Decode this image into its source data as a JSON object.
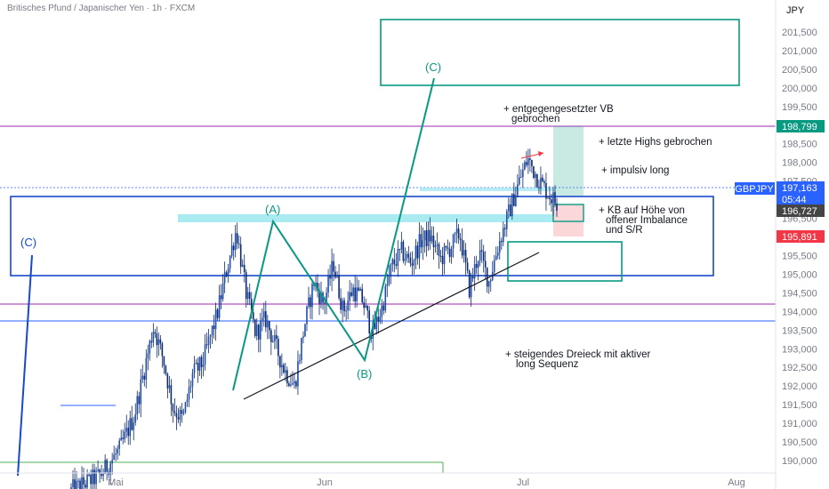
{
  "title": "Britisches Pfund / Japanischer Yen · 1h · FXCM",
  "currency": "JPY",
  "symbol_badge": "GBPJPY",
  "chart_data": {
    "type": "candlestick",
    "title": "Britisches Pfund / Japanischer Yen · 1h · FXCM",
    "ylim": [
      189.6,
      202.3
    ],
    "y_ticks": [
      "201,500",
      "201,000",
      "200,500",
      "200,000",
      "199,500",
      "199,000",
      "198,500",
      "198,000",
      "197,500",
      "197,000",
      "196,500",
      "196,000",
      "195,500",
      "195,000",
      "194,500",
      "194,000",
      "193,500",
      "193,000",
      "192,500",
      "192,000",
      "191,500",
      "191,000",
      "190,500",
      "190,000"
    ],
    "x_ticks": [
      "Mai",
      "Jun",
      "Jul",
      "Aug"
    ],
    "price_badges": [
      {
        "label": "198,799",
        "value": 198.799,
        "color": "#089981"
      },
      {
        "label": "197,163",
        "value": 197.163,
        "color": "#2962ff"
      },
      {
        "label": "05:44",
        "value": 196.95,
        "color": "#2962ff"
      },
      {
        "label": "196,727",
        "value": 196.727,
        "color": "#454545"
      },
      {
        "label": "195,891",
        "value": 195.891,
        "color": "#f23645"
      }
    ],
    "path": [
      [
        0.0,
        189.2
      ],
      [
        0.06,
        189.6
      ],
      [
        0.1,
        190.3
      ],
      [
        0.13,
        191.2
      ],
      [
        0.15,
        192.4
      ],
      [
        0.17,
        193.6
      ],
      [
        0.19,
        192.7
      ],
      [
        0.21,
        191.4
      ],
      [
        0.23,
        191.1
      ],
      [
        0.25,
        192.3
      ],
      [
        0.27,
        192.6
      ],
      [
        0.3,
        193.9
      ],
      [
        0.32,
        195.1
      ],
      [
        0.34,
        196.2
      ],
      [
        0.36,
        194.5
      ],
      [
        0.38,
        193.4
      ],
      [
        0.4,
        193.8
      ],
      [
        0.42,
        193.1
      ],
      [
        0.44,
        192.4
      ],
      [
        0.46,
        192.0
      ],
      [
        0.48,
        193.6
      ],
      [
        0.5,
        194.8
      ],
      [
        0.52,
        194.2
      ],
      [
        0.54,
        195.3
      ],
      [
        0.56,
        194.0
      ],
      [
        0.58,
        194.6
      ],
      [
        0.6,
        194.3
      ],
      [
        0.62,
        193.4
      ],
      [
        0.64,
        194.1
      ],
      [
        0.66,
        195.2
      ],
      [
        0.68,
        195.6
      ],
      [
        0.7,
        195.3
      ],
      [
        0.72,
        195.9
      ],
      [
        0.74,
        196.0
      ],
      [
        0.76,
        195.4
      ],
      [
        0.78,
        195.7
      ],
      [
        0.8,
        196.1
      ],
      [
        0.82,
        194.6
      ],
      [
        0.84,
        195.6
      ],
      [
        0.86,
        194.8
      ],
      [
        0.88,
        195.8
      ],
      [
        0.9,
        196.6
      ],
      [
        0.92,
        197.4
      ],
      [
        0.94,
        198.1
      ],
      [
        0.96,
        197.6
      ],
      [
        0.98,
        197.2
      ],
      [
        1.0,
        196.9
      ]
    ]
  },
  "annotations": {
    "vb": "+ entgegengesetzter VB",
    "vb2": "gebrochen",
    "highs": "+ letzte Highs gebrochen",
    "impulse": "+ impulsiv long",
    "kb1": "+ KB auf Höhe von",
    "kb2": "offener Imbalance",
    "kb3": "und S/R",
    "triangle1": "+ steigendes Dreieck mit aktiver",
    "triangle2": "long Sequenz"
  },
  "waves": {
    "A": "(A)",
    "B": "(B)",
    "C_green": "(C)",
    "C_blue": "(C)"
  },
  "colors": {
    "green": "#089981",
    "blue": "#1848cc",
    "candle": "#0c2a6e",
    "purple": "#9c27b0",
    "red": "#f23645"
  }
}
